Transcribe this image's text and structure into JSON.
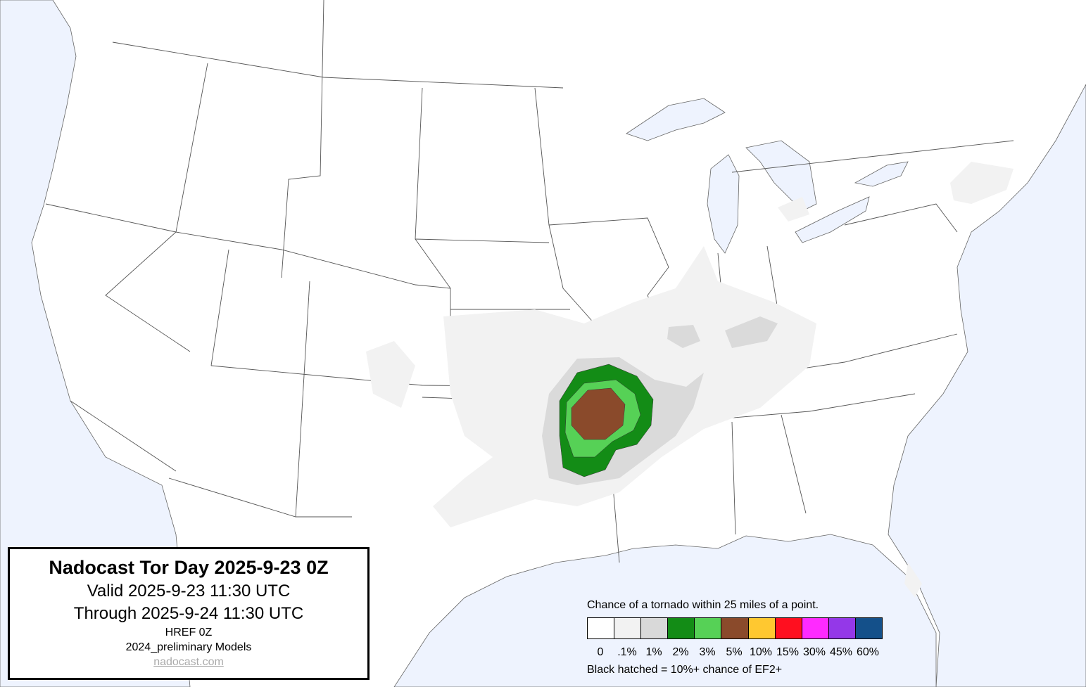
{
  "info": {
    "title": "Nadocast Tor Day 2025-9-23 0Z",
    "valid": "Valid 2025-9-23 11:30 UTC",
    "through": "Through 2025-9-24 11:30 UTC",
    "model_run": "HREF 0Z",
    "models": "2024_preliminary Models",
    "link": "nadocast.com"
  },
  "legend": {
    "title": "Chance of a tornado within 25 miles of a point.",
    "bins": [
      {
        "label": "0",
        "color": "#ffffff"
      },
      {
        "label": ".1%",
        "color": "#f2f2f2"
      },
      {
        "label": "1%",
        "color": "#d9d9d9"
      },
      {
        "label": "2%",
        "color": "#138c16"
      },
      {
        "label": "3%",
        "color": "#56d156"
      },
      {
        "label": "5%",
        "color": "#8a4a2b"
      },
      {
        "label": "10%",
        "color": "#ffc830"
      },
      {
        "label": "15%",
        "color": "#ff0f1f"
      },
      {
        "label": "30%",
        "color": "#ff2aff"
      },
      {
        "label": "45%",
        "color": "#9438e8"
      },
      {
        "label": "60%",
        "color": "#14508a"
      }
    ],
    "note": "Black hatched = 10%+ chance of EF2+"
  },
  "colors": {
    "water": "#eef3fe",
    "land": "#ffffff",
    "borders": "#555555"
  }
}
